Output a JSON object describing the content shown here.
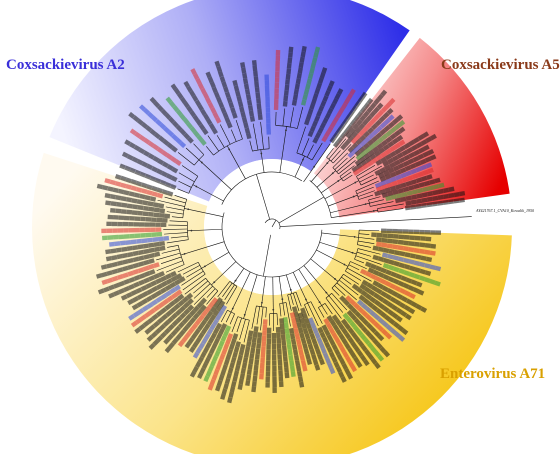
{
  "colors": {
    "coxsackievirus_a2": "#3232e6",
    "coxsackievirus_a5": "#e83030",
    "enterovirus_a71": "#f2c20f",
    "outgroup_branch": "#222222",
    "branch": "#111111",
    "background": "#ffffff"
  },
  "clades": [
    {
      "key": "a2",
      "label": "Coxsackievirus A2",
      "color": "#3a2fd9"
    },
    {
      "key": "a5",
      "label": "Coxsackievirus A5",
      "color": "#8a3a1a"
    },
    {
      "key": "ev71",
      "label": "Enterovirus A71",
      "color": "#d9a000"
    }
  ],
  "outgroup": {
    "label": "AY421767.1_CVA10_Kowalik_1950"
  },
  "tree": {
    "layout": "circular",
    "leaf_counts": {
      "a2": 26,
      "a5": 24,
      "ev71": 82
    },
    "leaf_text_colors": [
      "#111111",
      "#d92a2a",
      "#2a48d9",
      "#2a9a2a",
      "#c03ac0"
    ]
  }
}
